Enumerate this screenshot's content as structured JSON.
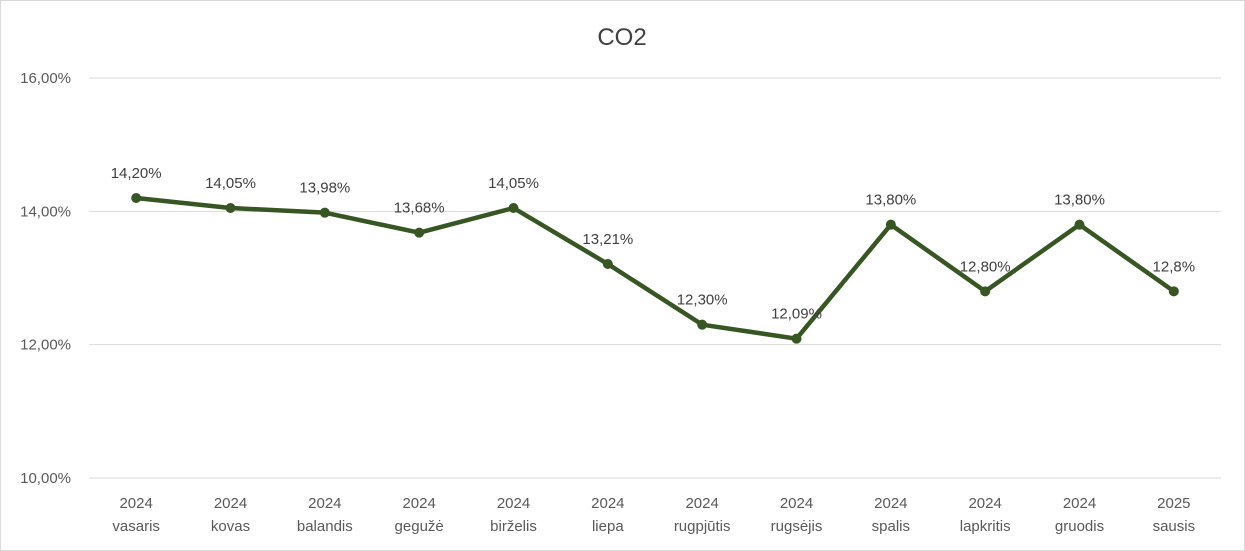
{
  "chart_data": {
    "type": "line",
    "title": "CO2",
    "xlabel": "",
    "ylabel": "",
    "categories": [
      [
        "2024",
        "vasaris"
      ],
      [
        "2024",
        "kovas"
      ],
      [
        "2024",
        "balandis"
      ],
      [
        "2024",
        "gegužė"
      ],
      [
        "2024",
        "birželis"
      ],
      [
        "2024",
        "liepa"
      ],
      [
        "2024",
        "rugpjūtis"
      ],
      [
        "2024",
        "rugsėjis"
      ],
      [
        "2024",
        "spalis"
      ],
      [
        "2024",
        "lapkritis"
      ],
      [
        "2024",
        "gruodis"
      ],
      [
        "2025",
        "sausis"
      ]
    ],
    "series": [
      {
        "values": [
          14.2,
          14.05,
          13.98,
          13.68,
          14.05,
          13.21,
          12.3,
          12.09,
          13.8,
          12.8,
          13.8,
          12.8
        ],
        "data_labels": [
          "14,20%",
          "14,05%",
          "13,98%",
          "13,68%",
          "14,05%",
          "13,21%",
          "12,30%",
          "12,09%",
          "13,80%",
          "12,80%",
          "13,80%",
          "12,8%"
        ],
        "color": "#375623"
      }
    ],
    "ylim": [
      10,
      16
    ],
    "yticks": [
      {
        "value": 10,
        "label": "10,00%"
      },
      {
        "value": 12,
        "label": "12,00%"
      },
      {
        "value": 14,
        "label": "14,00%"
      },
      {
        "value": 16,
        "label": "16,00%"
      }
    ],
    "grid": true,
    "legend": "none"
  }
}
